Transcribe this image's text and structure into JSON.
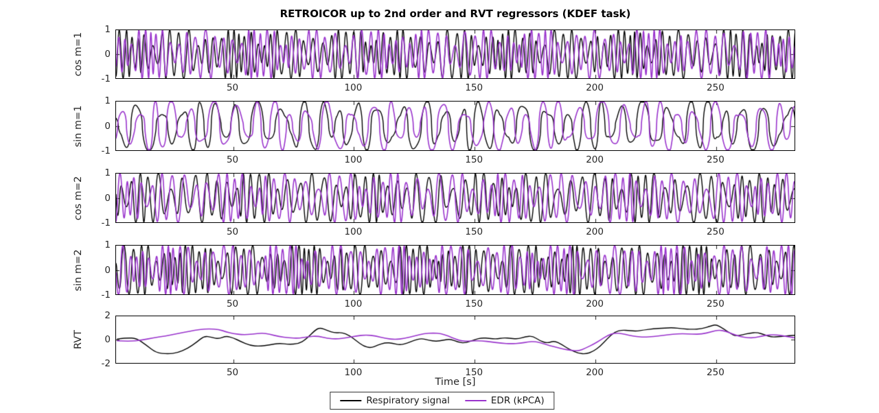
{
  "figure": {
    "title": "RETROICOR up to 2nd order and RVT regressors (KDEF task)",
    "xlabel": "Time [s]",
    "background_color": "#ffffff",
    "axis_color": "#262626",
    "box_color": "#000000",
    "legend": {
      "position": "bottom-center",
      "items": [
        {
          "label": "Respiratory signal",
          "color": "#000000"
        },
        {
          "label": "EDR (kPCA)",
          "color": "#9933cc"
        }
      ]
    }
  },
  "chart_data": [
    {
      "type": "line",
      "ylabel": "cos m=1",
      "xlim": [
        1.5,
        283
      ],
      "ylim": [
        -1,
        1
      ],
      "xticks": [
        50,
        100,
        150,
        200,
        250
      ],
      "yticks": [
        1,
        0,
        -1
      ],
      "grid": false,
      "series": [
        {
          "name": "Respiratory signal",
          "color": "#000000",
          "synth": {
            "kind": "quasi_periodic_oscillation",
            "seed": 3,
            "base_period_s": 3.2,
            "harmonic": 1,
            "waveform": "cos",
            "shape": 1.0,
            "amplitude_range": [
              0.35,
              1.0
            ]
          }
        },
        {
          "name": "EDR (kPCA)",
          "color": "#9933cc",
          "synth": {
            "kind": "quasi_periodic_oscillation",
            "seed": 11,
            "base_period_s": 3.3,
            "harmonic": 1,
            "waveform": "cos",
            "shape": 1.0,
            "amplitude_range": [
              0.35,
              1.0
            ]
          }
        }
      ]
    },
    {
      "type": "line",
      "ylabel": "sin m=1",
      "xlim": [
        1.5,
        283
      ],
      "ylim": [
        -1,
        1
      ],
      "xticks": [
        50,
        100,
        150,
        200,
        250
      ],
      "yticks": [
        1,
        0,
        -1
      ],
      "grid": false,
      "series": [
        {
          "name": "Respiratory signal",
          "color": "#000000",
          "synth": {
            "kind": "quasi_periodic_oscillation",
            "seed": 7,
            "base_period_s": 8.8,
            "harmonic": 1,
            "waveform": "sin",
            "shape": 0.55,
            "amplitude_range": [
              0.45,
              1.0
            ]
          }
        },
        {
          "name": "EDR (kPCA)",
          "color": "#9933cc",
          "synth": {
            "kind": "quasi_periodic_oscillation",
            "seed": 21,
            "base_period_s": 8.4,
            "harmonic": 1,
            "waveform": "sin",
            "shape": 0.55,
            "amplitude_range": [
              0.45,
              1.0
            ]
          }
        }
      ]
    },
    {
      "type": "line",
      "ylabel": "cos m=2",
      "xlim": [
        1.5,
        283
      ],
      "ylim": [
        -1,
        1
      ],
      "xticks": [
        50,
        100,
        150,
        200,
        250
      ],
      "yticks": [
        1,
        0,
        -1
      ],
      "grid": false,
      "series": [
        {
          "name": "Respiratory signal",
          "color": "#000000",
          "synth": {
            "kind": "quasi_periodic_oscillation",
            "seed": 5,
            "base_period_s": 8.6,
            "harmonic": 2,
            "waveform": "cos",
            "shape": 0.9,
            "amplitude_range": [
              0.35,
              1.0
            ]
          }
        },
        {
          "name": "EDR (kPCA)",
          "color": "#9933cc",
          "synth": {
            "kind": "quasi_periodic_oscillation",
            "seed": 17,
            "base_period_s": 8.2,
            "harmonic": 2,
            "waveform": "cos",
            "shape": 0.9,
            "amplitude_range": [
              0.35,
              1.0
            ]
          }
        }
      ]
    },
    {
      "type": "line",
      "ylabel": "sin m=2",
      "xlim": [
        1.5,
        283
      ],
      "ylim": [
        -1,
        1
      ],
      "xticks": [
        50,
        100,
        150,
        200,
        250
      ],
      "yticks": [
        1,
        0,
        -1
      ],
      "grid": false,
      "series": [
        {
          "name": "Respiratory signal",
          "color": "#000000",
          "synth": {
            "kind": "quasi_periodic_oscillation",
            "seed": 9,
            "base_period_s": 6.2,
            "harmonic": 2,
            "waveform": "sin",
            "shape": 0.8,
            "amplitude_range": [
              0.35,
              1.0
            ]
          }
        },
        {
          "name": "EDR (kPCA)",
          "color": "#9933cc",
          "synth": {
            "kind": "quasi_periodic_oscillation",
            "seed": 27,
            "base_period_s": 6.5,
            "harmonic": 2,
            "waveform": "sin",
            "shape": 0.8,
            "amplitude_range": [
              0.35,
              1.0
            ]
          }
        }
      ]
    },
    {
      "type": "line",
      "ylabel": "RVT",
      "xlim": [
        1.5,
        283
      ],
      "ylim": [
        -2,
        2
      ],
      "xticks": [
        50,
        100,
        150,
        200,
        250
      ],
      "yticks": [
        2,
        0,
        -2
      ],
      "grid": false,
      "series": [
        {
          "name": "Respiratory signal",
          "color": "#000000",
          "points": [
            [
              2,
              0.05
            ],
            [
              6,
              0.15
            ],
            [
              10,
              0.1
            ],
            [
              14,
              -0.45
            ],
            [
              18,
              -1.1
            ],
            [
              23,
              -1.2
            ],
            [
              27,
              -1.1
            ],
            [
              31,
              -0.75
            ],
            [
              35,
              -0.2
            ],
            [
              38,
              0.3
            ],
            [
              41,
              0.2
            ],
            [
              44,
              0.05
            ],
            [
              47,
              0.3
            ],
            [
              50,
              0.15
            ],
            [
              53,
              -0.15
            ],
            [
              57,
              -0.5
            ],
            [
              61,
              -0.55
            ],
            [
              65,
              -0.45
            ],
            [
              69,
              -0.3
            ],
            [
              73,
              -0.4
            ],
            [
              77,
              -0.35
            ],
            [
              80,
              0.0
            ],
            [
              84,
              0.8
            ],
            [
              86,
              1.0
            ],
            [
              89,
              0.75
            ],
            [
              92,
              0.55
            ],
            [
              95,
              0.6
            ],
            [
              98,
              0.35
            ],
            [
              101,
              -0.1
            ],
            [
              104,
              -0.55
            ],
            [
              107,
              -0.7
            ],
            [
              110,
              -0.45
            ],
            [
              113,
              -0.25
            ],
            [
              116,
              -0.3
            ],
            [
              119,
              -0.45
            ],
            [
              122,
              -0.3
            ],
            [
              125,
              -0.05
            ],
            [
              128,
              0.1
            ],
            [
              131,
              -0.05
            ],
            [
              134,
              -0.15
            ],
            [
              137,
              -0.05
            ],
            [
              140,
              0.05
            ],
            [
              143,
              -0.2
            ],
            [
              146,
              -0.3
            ],
            [
              150,
              0.0
            ],
            [
              153,
              0.15
            ],
            [
              156,
              0.1
            ],
            [
              159,
              0.05
            ],
            [
              162,
              0.15
            ],
            [
              165,
              0.1
            ],
            [
              168,
              0.05
            ],
            [
              171,
              0.25
            ],
            [
              174,
              0.3
            ],
            [
              177,
              -0.1
            ],
            [
              180,
              -0.3
            ],
            [
              183,
              -0.1
            ],
            [
              186,
              -0.4
            ],
            [
              189,
              -0.8
            ],
            [
              193,
              -1.15
            ],
            [
              196,
              -1.2
            ],
            [
              199,
              -1.0
            ],
            [
              202,
              -0.55
            ],
            [
              205,
              0.1
            ],
            [
              208,
              0.65
            ],
            [
              211,
              0.8
            ],
            [
              214,
              0.75
            ],
            [
              217,
              0.7
            ],
            [
              220,
              0.8
            ],
            [
              224,
              0.9
            ],
            [
              228,
              0.95
            ],
            [
              232,
              1.0
            ],
            [
              236,
              0.9
            ],
            [
              240,
              0.85
            ],
            [
              244,
              0.9
            ],
            [
              248,
              1.15
            ],
            [
              250,
              1.25
            ],
            [
              253,
              0.9
            ],
            [
              256,
              0.5
            ],
            [
              258,
              0.3
            ],
            [
              261,
              0.4
            ],
            [
              264,
              0.55
            ],
            [
              267,
              0.6
            ],
            [
              270,
              0.4
            ],
            [
              273,
              0.2
            ],
            [
              276,
              0.25
            ],
            [
              279,
              0.3
            ],
            [
              282,
              0.35
            ],
            [
              285,
              0.4
            ]
          ]
        },
        {
          "name": "EDR (kPCA)",
          "color": "#9933cc",
          "points": [
            [
              2,
              -0.1
            ],
            [
              7,
              -0.15
            ],
            [
              12,
              -0.05
            ],
            [
              17,
              0.15
            ],
            [
              22,
              0.3
            ],
            [
              27,
              0.5
            ],
            [
              32,
              0.7
            ],
            [
              36,
              0.85
            ],
            [
              40,
              0.9
            ],
            [
              44,
              0.85
            ],
            [
              47,
              0.65
            ],
            [
              50,
              0.5
            ],
            [
              54,
              0.4
            ],
            [
              58,
              0.45
            ],
            [
              62,
              0.55
            ],
            [
              65,
              0.45
            ],
            [
              69,
              0.25
            ],
            [
              73,
              0.15
            ],
            [
              77,
              0.1
            ],
            [
              81,
              0.25
            ],
            [
              85,
              0.3
            ],
            [
              89,
              0.1
            ],
            [
              93,
              0.05
            ],
            [
              97,
              0.15
            ],
            [
              101,
              0.3
            ],
            [
              105,
              0.4
            ],
            [
              109,
              0.3
            ],
            [
              113,
              0.1
            ],
            [
              117,
              0.0
            ],
            [
              121,
              0.1
            ],
            [
              125,
              0.3
            ],
            [
              129,
              0.5
            ],
            [
              133,
              0.55
            ],
            [
              136,
              0.5
            ],
            [
              139,
              0.3
            ],
            [
              142,
              0.05
            ],
            [
              145,
              -0.15
            ],
            [
              149,
              -0.1
            ],
            [
              153,
              -0.1
            ],
            [
              157,
              -0.2
            ],
            [
              161,
              -0.3
            ],
            [
              165,
              -0.35
            ],
            [
              169,
              -0.3
            ],
            [
              172,
              -0.2
            ],
            [
              175,
              -0.15
            ],
            [
              178,
              -0.3
            ],
            [
              181,
              -0.5
            ],
            [
              184,
              -0.65
            ],
            [
              187,
              -0.8
            ],
            [
              190,
              -0.9
            ],
            [
              193,
              -0.95
            ],
            [
              196,
              -0.7
            ],
            [
              199,
              -0.4
            ],
            [
              202,
              -0.05
            ],
            [
              205,
              0.35
            ],
            [
              208,
              0.55
            ],
            [
              211,
              0.5
            ],
            [
              214,
              0.35
            ],
            [
              217,
              0.25
            ],
            [
              220,
              0.2
            ],
            [
              224,
              0.25
            ],
            [
              228,
              0.35
            ],
            [
              232,
              0.45
            ],
            [
              236,
              0.5
            ],
            [
              240,
              0.45
            ],
            [
              244,
              0.45
            ],
            [
              248,
              0.65
            ],
            [
              251,
              0.8
            ],
            [
              254,
              0.7
            ],
            [
              257,
              0.45
            ],
            [
              260,
              0.25
            ],
            [
              263,
              0.15
            ],
            [
              266,
              0.15
            ],
            [
              269,
              0.3
            ],
            [
              272,
              0.4
            ],
            [
              275,
              0.4
            ],
            [
              278,
              0.3
            ],
            [
              281,
              0.2
            ],
            [
              284,
              0.1
            ]
          ]
        }
      ]
    }
  ]
}
